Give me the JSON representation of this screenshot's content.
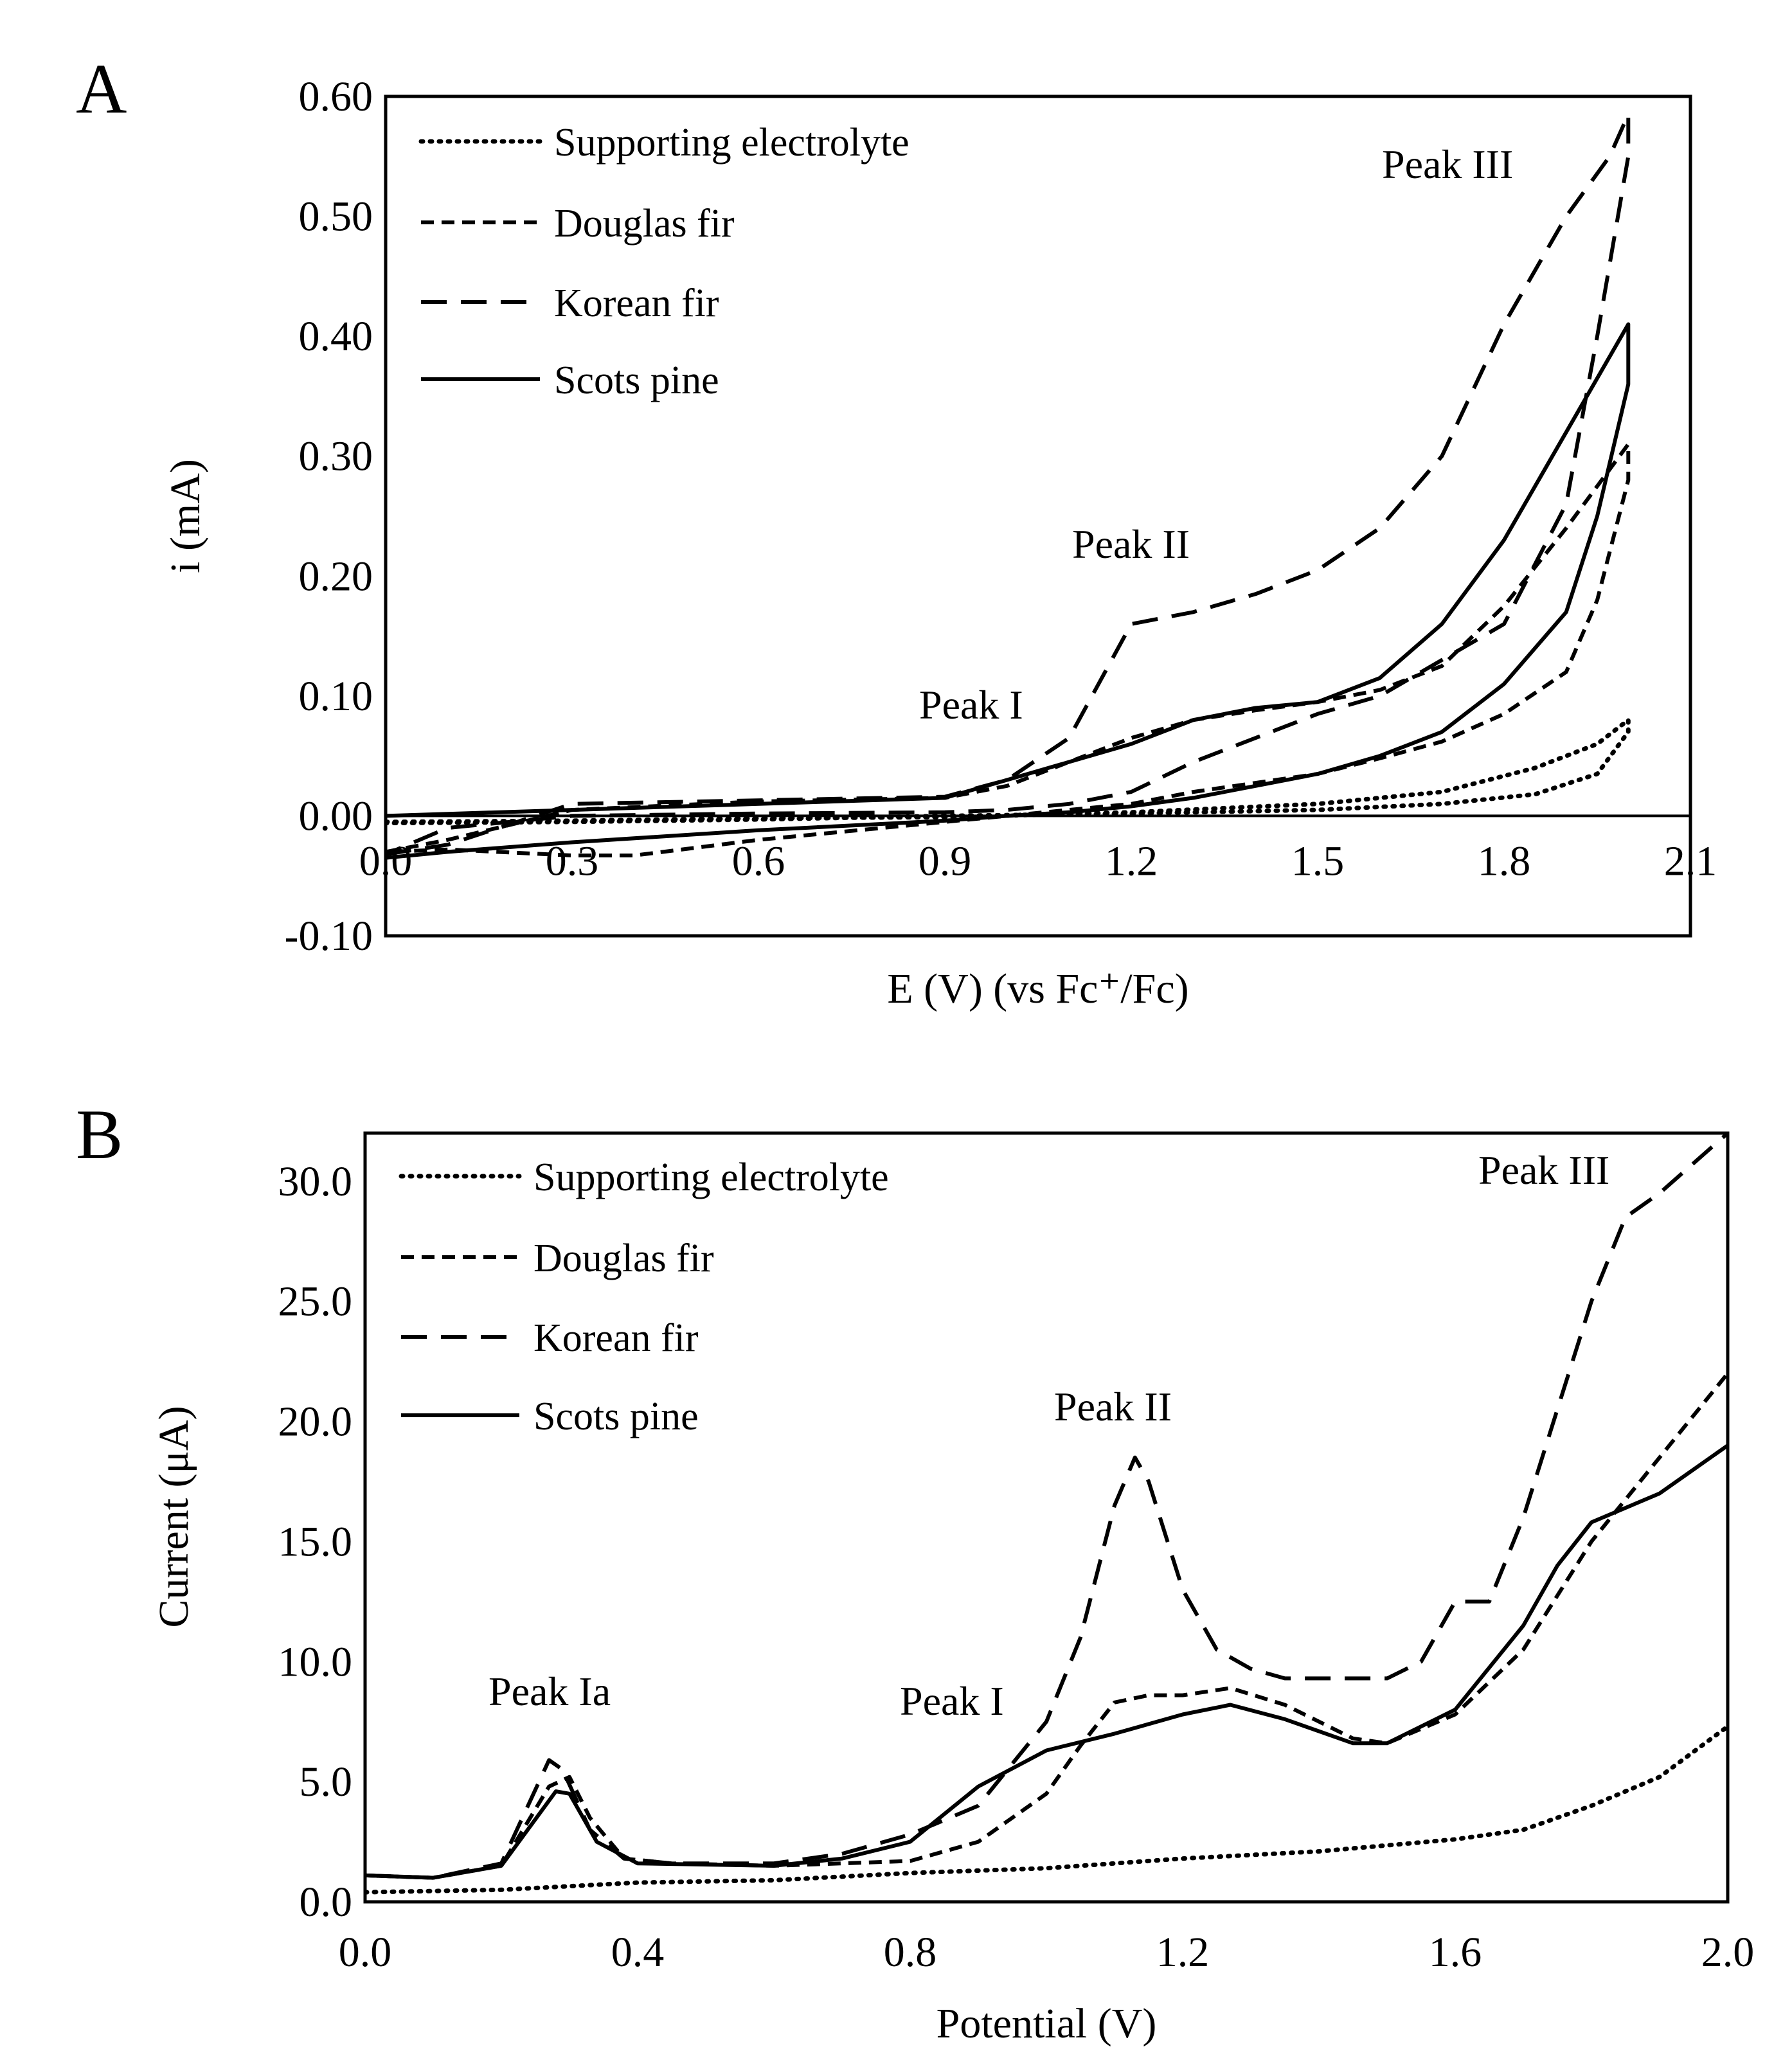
{
  "chart_data": [
    {
      "panel": "A",
      "type": "line",
      "xlabel": "E (V) (vs Fc⁺/Fc)",
      "ylabel": "i (mA)",
      "xlim": [
        0,
        2.1
      ],
      "ylim": [
        -0.1,
        0.6
      ],
      "xticks": [
        "0.0",
        "0.3",
        "0.6",
        "0.9",
        "1.2",
        "1.5",
        "1.8",
        "2.1"
      ],
      "yticks": [
        "-0.10",
        "0.00",
        "0.10",
        "0.20",
        "0.30",
        "0.40",
        "0.50",
        "0.60"
      ],
      "legend": [
        "Supporting electrolyte",
        "Douglas fir",
        "Korean fir",
        "Scots pine"
      ],
      "annotations": [
        "Peak I",
        "Peak II",
        "Peak III"
      ],
      "series": [
        {
          "name": "Supporting electrolyte",
          "style": "dotted",
          "points": [
            [
              0,
              -0.005
            ],
            [
              0.3,
              -0.004
            ],
            [
              0.6,
              -0.002
            ],
            [
              0.9,
              -0.001
            ],
            [
              1.2,
              0.003
            ],
            [
              1.5,
              0.01
            ],
            [
              1.7,
              0.02
            ],
            [
              1.85,
              0.04
            ],
            [
              1.95,
              0.06
            ],
            [
              2.0,
              0.08
            ],
            [
              2.0,
              0.07
            ],
            [
              1.95,
              0.035
            ],
            [
              1.85,
              0.018
            ],
            [
              1.7,
              0.01
            ],
            [
              1.5,
              0.005
            ],
            [
              1.2,
              0.002
            ],
            [
              0.9,
              0.0
            ],
            [
              0.6,
              -0.003
            ],
            [
              0.3,
              -0.005
            ],
            [
              0,
              -0.006
            ]
          ]
        },
        {
          "name": "Douglas fir",
          "style": "dashed",
          "points": [
            [
              0,
              -0.03
            ],
            [
              0.1,
              -0.02
            ],
            [
              0.3,
              0.005
            ],
            [
              0.6,
              0.012
            ],
            [
              0.9,
              0.015
            ],
            [
              1.0,
              0.025
            ],
            [
              1.1,
              0.045
            ],
            [
              1.2,
              0.065
            ],
            [
              1.3,
              0.08
            ],
            [
              1.4,
              0.088
            ],
            [
              1.5,
              0.095
            ],
            [
              1.6,
              0.105
            ],
            [
              1.7,
              0.125
            ],
            [
              1.8,
              0.175
            ],
            [
              1.9,
              0.24
            ],
            [
              2.0,
              0.31
            ],
            [
              2.0,
              0.28
            ],
            [
              1.95,
              0.18
            ],
            [
              1.9,
              0.12
            ],
            [
              1.8,
              0.085
            ],
            [
              1.7,
              0.062
            ],
            [
              1.6,
              0.048
            ],
            [
              1.5,
              0.035
            ],
            [
              1.3,
              0.02
            ],
            [
              1.2,
              0.01
            ],
            [
              1.0,
              0.0
            ],
            [
              0.9,
              -0.005
            ],
            [
              0.6,
              -0.02
            ],
            [
              0.4,
              -0.033
            ],
            [
              0.3,
              -0.033
            ],
            [
              0.1,
              -0.028
            ],
            [
              0,
              -0.03
            ]
          ]
        },
        {
          "name": "Korean fir",
          "style": "longdash",
          "points": [
            [
              0,
              -0.032
            ],
            [
              0.1,
              -0.024
            ],
            [
              0.3,
              0.01
            ],
            [
              0.6,
              0.013
            ],
            [
              0.9,
              0.016
            ],
            [
              1.0,
              0.03
            ],
            [
              1.1,
              0.065
            ],
            [
              1.2,
              0.16
            ],
            [
              1.3,
              0.17
            ],
            [
              1.4,
              0.185
            ],
            [
              1.5,
              0.205
            ],
            [
              1.6,
              0.24
            ],
            [
              1.7,
              0.3
            ],
            [
              1.8,
              0.41
            ],
            [
              1.9,
              0.5
            ],
            [
              1.97,
              0.55
            ],
            [
              2.0,
              0.585
            ],
            [
              2.0,
              0.55
            ],
            [
              1.95,
              0.4
            ],
            [
              1.9,
              0.26
            ],
            [
              1.8,
              0.16
            ],
            [
              1.7,
              0.13
            ],
            [
              1.6,
              0.1
            ],
            [
              1.5,
              0.085
            ],
            [
              1.4,
              0.065
            ],
            [
              1.3,
              0.045
            ],
            [
              1.2,
              0.02
            ],
            [
              1.1,
              0.01
            ],
            [
              1.0,
              0.005
            ],
            [
              0.9,
              0.003
            ],
            [
              0.6,
              0.002
            ],
            [
              0.3,
              0.0
            ],
            [
              0.1,
              -0.01
            ],
            [
              0,
              -0.032
            ]
          ]
        },
        {
          "name": "Scots pine",
          "style": "solid",
          "points": [
            [
              0,
              0.0
            ],
            [
              0.3,
              0.005
            ],
            [
              0.6,
              0.01
            ],
            [
              0.9,
              0.015
            ],
            [
              1.0,
              0.03
            ],
            [
              1.1,
              0.045
            ],
            [
              1.2,
              0.06
            ],
            [
              1.3,
              0.08
            ],
            [
              1.4,
              0.09
            ],
            [
              1.5,
              0.095
            ],
            [
              1.6,
              0.115
            ],
            [
              1.7,
              0.16
            ],
            [
              1.8,
              0.23
            ],
            [
              1.9,
              0.32
            ],
            [
              2.0,
              0.41
            ],
            [
              2.0,
              0.36
            ],
            [
              1.95,
              0.25
            ],
            [
              1.9,
              0.17
            ],
            [
              1.8,
              0.11
            ],
            [
              1.7,
              0.07
            ],
            [
              1.6,
              0.05
            ],
            [
              1.5,
              0.035
            ],
            [
              1.4,
              0.025
            ],
            [
              1.3,
              0.015
            ],
            [
              1.2,
              0.008
            ],
            [
              1.1,
              0.003
            ],
            [
              1.0,
              0.0
            ],
            [
              0.9,
              -0.004
            ],
            [
              0.6,
              -0.012
            ],
            [
              0.3,
              -0.022
            ],
            [
              0.1,
              -0.03
            ],
            [
              0,
              -0.035
            ]
          ]
        }
      ]
    },
    {
      "panel": "B",
      "type": "line",
      "xlabel": "Potential (V)",
      "ylabel": "Current  (μA)",
      "xlim": [
        0,
        2.0
      ],
      "ylim": [
        0,
        32.0
      ],
      "xticks": [
        "0.0",
        "0.4",
        "0.8",
        "1.2",
        "1.6",
        "2.0"
      ],
      "yticks": [
        "0.0",
        "5.0",
        "10.0",
        "15.0",
        "20.0",
        "25.0",
        "30.0"
      ],
      "legend": [
        "Supporting electrolyte",
        "Douglas fir",
        "Korean fir",
        "Scots pine"
      ],
      "annotations": [
        "Peak Ia",
        "Peak I",
        "Peak II",
        "Peak III"
      ],
      "series": [
        {
          "name": "Supporting electrolyte",
          "style": "dotted",
          "points": [
            [
              0,
              0.4
            ],
            [
              0.2,
              0.5
            ],
            [
              0.4,
              0.8
            ],
            [
              0.6,
              0.9
            ],
            [
              0.8,
              1.2
            ],
            [
              1.0,
              1.4
            ],
            [
              1.2,
              1.8
            ],
            [
              1.4,
              2.1
            ],
            [
              1.6,
              2.6
            ],
            [
              1.7,
              3.0
            ],
            [
              1.8,
              4.0
            ],
            [
              1.9,
              5.2
            ],
            [
              2.0,
              7.3
            ]
          ]
        },
        {
          "name": "Douglas fir",
          "style": "dashed",
          "points": [
            [
              0,
              1.1
            ],
            [
              0.1,
              1.0
            ],
            [
              0.2,
              1.5
            ],
            [
              0.27,
              4.8
            ],
            [
              0.3,
              5.2
            ],
            [
              0.33,
              3.5
            ],
            [
              0.38,
              1.8
            ],
            [
              0.45,
              1.6
            ],
            [
              0.6,
              1.5
            ],
            [
              0.8,
              1.7
            ],
            [
              0.9,
              2.5
            ],
            [
              1.0,
              4.5
            ],
            [
              1.05,
              6.5
            ],
            [
              1.1,
              8.3
            ],
            [
              1.15,
              8.6
            ],
            [
              1.2,
              8.6
            ],
            [
              1.27,
              8.9
            ],
            [
              1.35,
              8.2
            ],
            [
              1.45,
              6.8
            ],
            [
              1.5,
              6.6
            ],
            [
              1.6,
              7.8
            ],
            [
              1.7,
              10.5
            ],
            [
              1.8,
              15.0
            ],
            [
              1.9,
              18.5
            ],
            [
              2.0,
              22.0
            ]
          ]
        },
        {
          "name": "Korean fir",
          "style": "longdash",
          "points": [
            [
              0,
              1.1
            ],
            [
              0.1,
              1.0
            ],
            [
              0.2,
              1.6
            ],
            [
              0.27,
              5.9
            ],
            [
              0.29,
              5.5
            ],
            [
              0.33,
              3.0
            ],
            [
              0.38,
              1.8
            ],
            [
              0.45,
              1.6
            ],
            [
              0.6,
              1.6
            ],
            [
              0.7,
              2.0
            ],
            [
              0.8,
              2.8
            ],
            [
              0.9,
              4.0
            ],
            [
              1.0,
              7.5
            ],
            [
              1.05,
              11.0
            ],
            [
              1.1,
              16.5
            ],
            [
              1.13,
              18.5
            ],
            [
              1.15,
              17.5
            ],
            [
              1.2,
              13.0
            ],
            [
              1.25,
              10.5
            ],
            [
              1.3,
              9.7
            ],
            [
              1.35,
              9.3
            ],
            [
              1.45,
              9.3
            ],
            [
              1.5,
              9.3
            ],
            [
              1.55,
              10.0
            ],
            [
              1.6,
              12.5
            ],
            [
              1.65,
              12.5
            ],
            [
              1.7,
              16.0
            ],
            [
              1.8,
              25.0
            ],
            [
              1.85,
              28.5
            ],
            [
              1.9,
              29.5
            ],
            [
              2.0,
              32.0
            ]
          ]
        },
        {
          "name": "Scots pine",
          "style": "solid",
          "points": [
            [
              0,
              1.1
            ],
            [
              0.1,
              1.0
            ],
            [
              0.2,
              1.5
            ],
            [
              0.28,
              4.6
            ],
            [
              0.3,
              4.5
            ],
            [
              0.34,
              2.5
            ],
            [
              0.4,
              1.6
            ],
            [
              0.6,
              1.5
            ],
            [
              0.7,
              1.8
            ],
            [
              0.8,
              2.5
            ],
            [
              0.9,
              4.8
            ],
            [
              1.0,
              6.3
            ],
            [
              1.1,
              7.0
            ],
            [
              1.2,
              7.8
            ],
            [
              1.27,
              8.2
            ],
            [
              1.35,
              7.6
            ],
            [
              1.45,
              6.6
            ],
            [
              1.5,
              6.6
            ],
            [
              1.6,
              8.0
            ],
            [
              1.7,
              11.5
            ],
            [
              1.75,
              14.0
            ],
            [
              1.8,
              15.8
            ],
            [
              1.9,
              17.0
            ],
            [
              2.0,
              19.0
            ]
          ]
        }
      ]
    }
  ]
}
